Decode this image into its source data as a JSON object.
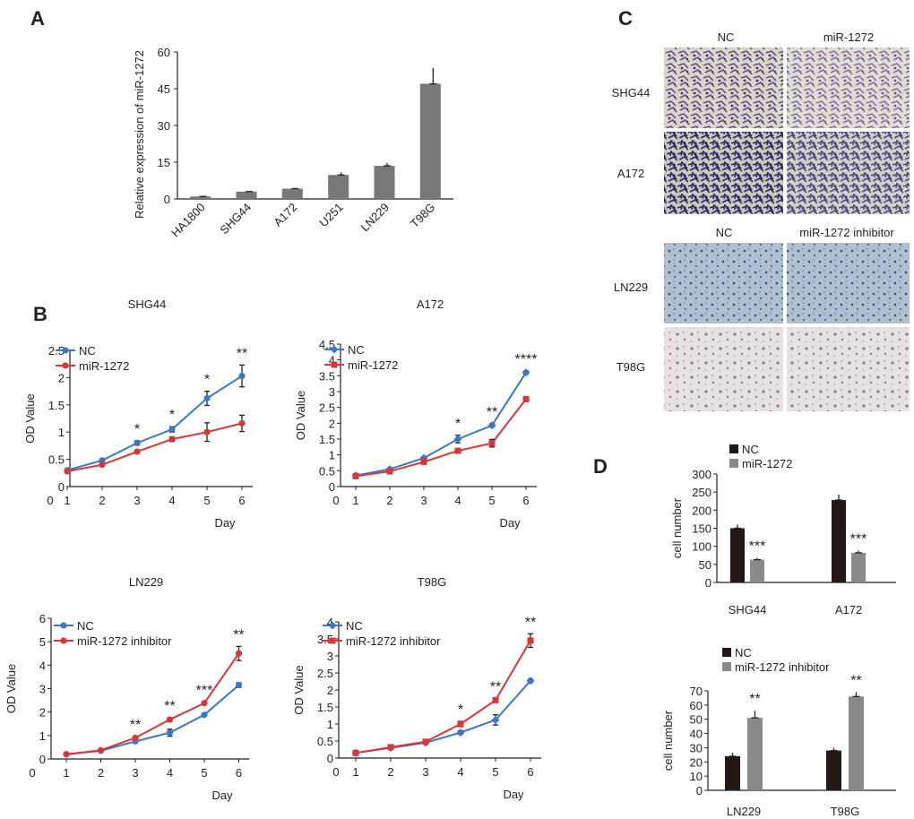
{
  "panels": {
    "a": "A",
    "b": "B",
    "c": "C",
    "d": "D"
  },
  "colors": {
    "blue": "#3a78c0",
    "red": "#d43838",
    "bar_gray": "#787878",
    "bar_dark": "#231815",
    "bar_light": "#8a8a8a",
    "error": "#222222"
  },
  "micrograph": {
    "top_cols": [
      "NC",
      "miR-1272"
    ],
    "bottom_cols": [
      "NC",
      "miR-1272 inhibitor"
    ],
    "rows": [
      "SHG44",
      "A172",
      "LN229",
      "T98G"
    ]
  },
  "chart_data": [
    {
      "id": "A",
      "type": "bar",
      "title": "",
      "ylabel": "Relative expression of miR-1272",
      "categories": [
        "HA1800",
        "SHG44",
        "A172",
        "U251",
        "LN229",
        "T98G"
      ],
      "values": [
        1,
        3,
        4.2,
        9.8,
        13.5,
        47
      ],
      "errors": [
        0.3,
        0.3,
        0.3,
        1.0,
        1.2,
        6.5
      ],
      "ylim": [
        0,
        60
      ],
      "yticks": [
        "0",
        "15",
        "30",
        "45",
        "60"
      ]
    },
    {
      "id": "B1",
      "type": "line",
      "title": "SHG44",
      "xlabel": "Day",
      "ylabel": "OD Value",
      "x": [
        1,
        2,
        3,
        4,
        5,
        6
      ],
      "xticks": [
        "0",
        "1",
        "2",
        "3",
        "4",
        "5",
        "6"
      ],
      "ylim": [
        0,
        2.5
      ],
      "yticks": [
        "0",
        "0.5",
        "1",
        "1.5",
        "2",
        "2.5"
      ],
      "series": [
        {
          "name": "NC",
          "values": [
            0.3,
            0.48,
            0.8,
            1.05,
            1.62,
            2.03
          ],
          "errors": [
            0.02,
            0.02,
            0.04,
            0.05,
            0.13,
            0.2
          ]
        },
        {
          "name": "miR-1272",
          "values": [
            0.28,
            0.4,
            0.64,
            0.87,
            1.0,
            1.16
          ],
          "errors": [
            0.02,
            0.02,
            0.03,
            0.04,
            0.17,
            0.15
          ]
        }
      ],
      "stars": [
        "",
        "",
        "*",
        "*",
        "*",
        "**"
      ]
    },
    {
      "id": "B2",
      "type": "line",
      "title": "A172",
      "xlabel": "Day",
      "ylabel": "OD Value",
      "x": [
        1,
        2,
        3,
        4,
        5,
        6
      ],
      "xticks": [
        "0",
        "1",
        "2",
        "3",
        "4",
        "5",
        "6"
      ],
      "ylim": [
        0,
        4.5
      ],
      "yticks": [
        "0",
        "0.5",
        "1",
        "1.5",
        "2",
        "2.5",
        "3",
        "3.5",
        "4",
        "4.5"
      ],
      "series": [
        {
          "name": "NC",
          "values": [
            0.35,
            0.55,
            0.9,
            1.5,
            1.93,
            3.6
          ],
          "errors": [
            0.02,
            0.03,
            0.04,
            0.12,
            0.05,
            0.05
          ]
        },
        {
          "name": "miR-1272",
          "values": [
            0.33,
            0.48,
            0.78,
            1.13,
            1.37,
            2.76
          ],
          "errors": [
            0.02,
            0.02,
            0.03,
            0.05,
            0.12,
            0.03
          ]
        }
      ],
      "stars": [
        "",
        "",
        "",
        "*",
        "**",
        "****"
      ]
    },
    {
      "id": "B3",
      "type": "line",
      "title": "LN229",
      "xlabel": "Day",
      "ylabel": "OD Value",
      "x": [
        1,
        2,
        3,
        4,
        5,
        6
      ],
      "xticks": [
        "0",
        "1",
        "2",
        "3",
        "4",
        "5",
        "6"
      ],
      "ylim": [
        0,
        6
      ],
      "yticks": [
        "0",
        "1",
        "2",
        "3",
        "4",
        "5",
        "6"
      ],
      "series": [
        {
          "name": "NC",
          "values": [
            0.2,
            0.35,
            0.75,
            1.12,
            1.88,
            3.15
          ],
          "errors": [
            0.02,
            0.03,
            0.05,
            0.15,
            0.05,
            0.1
          ]
        },
        {
          "name": "miR-1272 inhibitor",
          "values": [
            0.2,
            0.37,
            0.9,
            1.68,
            2.38,
            4.5
          ],
          "errors": [
            0.02,
            0.03,
            0.05,
            0.08,
            0.05,
            0.3
          ]
        }
      ],
      "stars": [
        "",
        "",
        "**",
        "**",
        "***",
        "**"
      ]
    },
    {
      "id": "B4",
      "type": "line",
      "title": "T98G",
      "xlabel": "Day",
      "ylabel": "OD Value",
      "x": [
        1,
        2,
        3,
        4,
        5,
        6
      ],
      "xticks": [
        "0",
        "1",
        "2",
        "3",
        "4",
        "5",
        "6"
      ],
      "ylim": [
        0,
        4
      ],
      "yticks": [
        "0",
        "0.5",
        "1",
        "1.5",
        "2",
        "2.5",
        "3",
        "3.5",
        "4"
      ],
      "series": [
        {
          "name": "NC",
          "values": [
            0.15,
            0.3,
            0.45,
            0.75,
            1.12,
            2.27
          ],
          "errors": [
            0.02,
            0.03,
            0.03,
            0.05,
            0.15,
            0.05
          ]
        },
        {
          "name": "miR-1272 inhibitor",
          "values": [
            0.15,
            0.32,
            0.48,
            1.0,
            1.7,
            3.45
          ],
          "errors": [
            0.02,
            0.03,
            0.04,
            0.08,
            0.05,
            0.2
          ]
        }
      ],
      "stars": [
        "",
        "",
        "",
        "*",
        "**",
        "**"
      ]
    },
    {
      "id": "D1",
      "type": "bar",
      "title": "",
      "ylabel": "cell number",
      "categories": [
        "SHG44",
        "A172"
      ],
      "series": [
        {
          "name": "NC",
          "values": [
            150,
            228
          ],
          "errors": [
            10,
            15
          ]
        },
        {
          "name": "miR-1272",
          "values": [
            63,
            82
          ],
          "errors": [
            5,
            6
          ]
        }
      ],
      "stars": [
        "***",
        "***"
      ],
      "ylim": [
        0,
        300
      ],
      "yticks": [
        "0",
        "50",
        "100",
        "150",
        "200",
        "250",
        "300"
      ]
    },
    {
      "id": "D2",
      "type": "bar",
      "title": "",
      "ylabel": "cell number",
      "categories": [
        "LN229",
        "T98G"
      ],
      "series": [
        {
          "name": "NC",
          "values": [
            24,
            28
          ],
          "errors": [
            2.5,
            2
          ]
        },
        {
          "name": "miR-1272 inhibitor",
          "values": [
            51,
            66
          ],
          "errors": [
            5,
            3
          ]
        }
      ],
      "stars": [
        "**",
        "**"
      ],
      "ylim": [
        0,
        70
      ],
      "yticks": [
        "0",
        "10",
        "20",
        "30",
        "40",
        "50",
        "60",
        "70"
      ]
    }
  ]
}
